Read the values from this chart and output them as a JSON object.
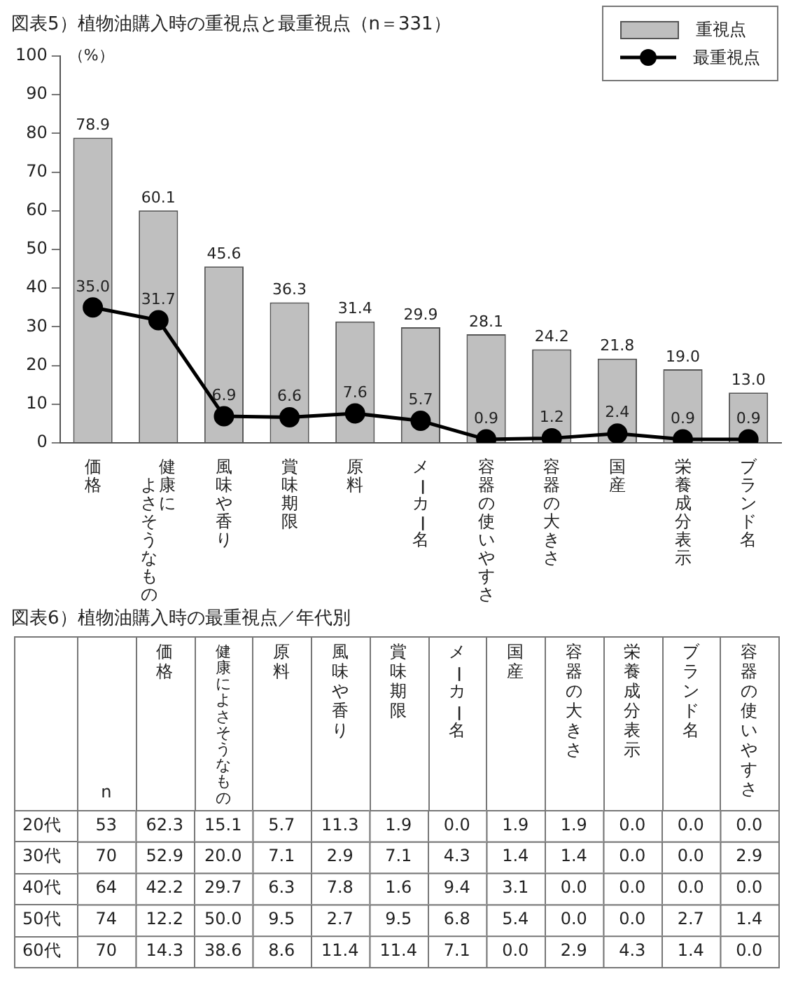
{
  "chart_data": [
    {
      "type": "bar",
      "title": "図表5）植物油購入時の重視点と最重視点（n＝331）",
      "ylabel": "（%）",
      "categories": [
        "価格",
        "健康によさそうなもの",
        "風味や香り",
        "賞味期限",
        "原料",
        "メーカー名",
        "容器の使いやすさ",
        "容器の大きさ",
        "国産",
        "栄養成分表示",
        "ブランド名"
      ],
      "series": [
        {
          "name": "重視点",
          "type": "bar",
          "color": "#bfbfbf",
          "values": [
            78.9,
            60.1,
            45.6,
            36.3,
            31.4,
            29.9,
            28.1,
            24.2,
            21.8,
            19.0,
            13.0
          ],
          "value_labels": [
            "78.9",
            "60.1",
            "45.6",
            "36.3",
            "31.4",
            "29.9",
            "28.1",
            "24.2",
            "21.8",
            "19.0",
            "13.0"
          ]
        },
        {
          "name": "最重視点",
          "type": "line",
          "color": "#000000",
          "values": [
            35.0,
            31.7,
            6.9,
            6.6,
            7.6,
            5.7,
            0.9,
            1.2,
            2.4,
            0.9,
            0.9
          ],
          "value_labels": [
            "35.0",
            "31.7",
            "6.9",
            "6.6",
            "7.6",
            "5.7",
            "0.9",
            "1.2",
            "2.4",
            "0.9",
            "0.9"
          ]
        }
      ],
      "ylim": [
        0,
        100
      ],
      "yticks": [
        0,
        10,
        20,
        30,
        40,
        50,
        60,
        70,
        80,
        90,
        100
      ],
      "grid": false,
      "legend": "top right",
      "marker": "circle",
      "line_style": "solid"
    },
    {
      "type": "heatmap",
      "title": "図表6）植物油購入時の最重視点／年代別",
      "categories": [
        "n",
        "価格",
        "健康によさそうなもの",
        "原料",
        "風味や香り",
        "賞味期限",
        "メーカー名",
        "国産",
        "容器の大きさ",
        "栄養成分表示",
        "ブランド名",
        "容器の使いやすさ"
      ],
      "y_categories": [
        "20代",
        "30代",
        "40代",
        "50代",
        "60代"
      ],
      "cells": [
        [
          53,
          62.3,
          15.1,
          5.7,
          11.3,
          1.9,
          0.0,
          1.9,
          1.9,
          0.0,
          0.0,
          0.0
        ],
        [
          70,
          52.9,
          20.0,
          7.1,
          2.9,
          7.1,
          4.3,
          1.4,
          1.4,
          0.0,
          0.0,
          2.9
        ],
        [
          64,
          42.2,
          29.7,
          6.3,
          7.8,
          1.6,
          9.4,
          3.1,
          0.0,
          0.0,
          0.0,
          0.0
        ],
        [
          74,
          12.2,
          50.0,
          9.5,
          2.7,
          9.5,
          6.8,
          5.4,
          0.0,
          0.0,
          2.7,
          1.4
        ],
        [
          70,
          14.3,
          38.6,
          8.6,
          11.4,
          11.4,
          7.1,
          0.0,
          2.9,
          4.3,
          1.4,
          0.0
        ]
      ],
      "cell_labels": [
        [
          "53",
          "62.3",
          "15.1",
          "5.7",
          "11.3",
          "1.9",
          "0.0",
          "1.9",
          "1.9",
          "0.0",
          "0.0",
          "0.0"
        ],
        [
          "70",
          "52.9",
          "20.0",
          "7.1",
          "2.9",
          "7.1",
          "4.3",
          "1.4",
          "1.4",
          "0.0",
          "0.0",
          "2.9"
        ],
        [
          "64",
          "42.2",
          "29.7",
          "6.3",
          "7.8",
          "1.6",
          "9.4",
          "3.1",
          "0.0",
          "0.0",
          "0.0",
          "0.0"
        ],
        [
          "74",
          "12.2",
          "50.0",
          "9.5",
          "2.7",
          "9.5",
          "6.8",
          "5.4",
          "0.0",
          "0.0",
          "2.7",
          "1.4"
        ],
        [
          "70",
          "14.3",
          "38.6",
          "8.6",
          "11.4",
          "11.4",
          "7.1",
          "0.0",
          "2.9",
          "4.3",
          "1.4",
          "0.0"
        ]
      ]
    }
  ]
}
